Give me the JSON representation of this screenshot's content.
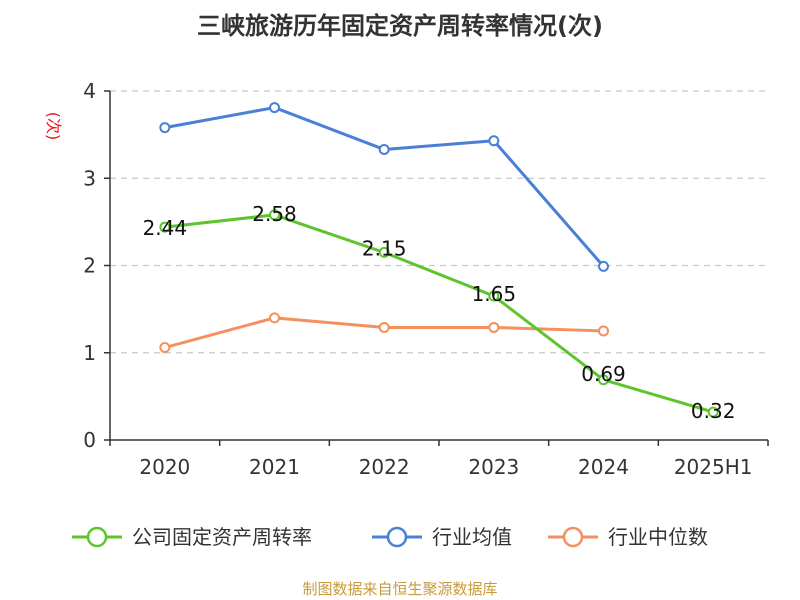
{
  "title": "三峡旅游历年固定资产周转率情况(次)",
  "source": "制图数据来自恒生聚源数据库",
  "colors": {
    "company": "#5dc52b",
    "industry_avg": "#4a7fd6",
    "industry_median": "#f5905d",
    "grid": "#c8c8c8",
    "axis": "#333333",
    "ylabel": "#e8161c",
    "source": "#c99a3a"
  },
  "chart_data": {
    "type": "line",
    "title": "三峡旅游历年固定资产周转率情况(次)",
    "ylabel": "(次)",
    "xlabel": "",
    "categories": [
      "2020",
      "2021",
      "2022",
      "2023",
      "2024",
      "2025H1"
    ],
    "ylim": [
      0,
      4
    ],
    "yticks": [
      "0",
      "1",
      "2",
      "3",
      "4"
    ],
    "grid": "horizontal dashed",
    "legend_position": "bottom",
    "series": [
      {
        "name": "公司固定资产周转率",
        "values": [
          2.44,
          2.58,
          2.15,
          1.65,
          0.69,
          0.32
        ],
        "labels": [
          "2.44",
          "2.58",
          "2.15",
          "1.65",
          "0.69",
          "0.32"
        ]
      },
      {
        "name": "行业均值",
        "values": [
          3.58,
          3.81,
          3.33,
          3.43,
          1.99,
          null
        ]
      },
      {
        "name": "行业中位数",
        "values": [
          1.06,
          1.4,
          1.29,
          1.29,
          1.25,
          null
        ]
      }
    ]
  }
}
